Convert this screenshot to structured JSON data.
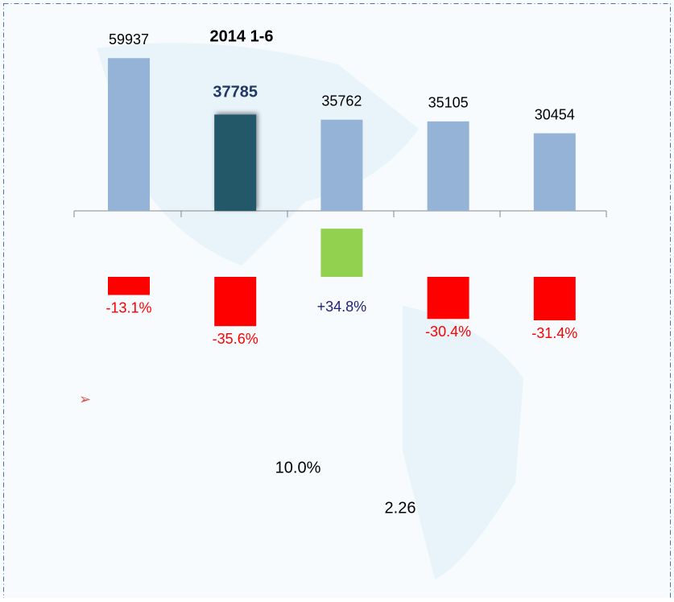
{
  "chart_data": [
    {
      "type": "bar",
      "title": "2014   1-6",
      "categories": [
        null,
        null,
        null,
        null,
        null
      ],
      "values": [
        59937,
        37785,
        35762,
        35105,
        30454
      ],
      "colors": [
        "#95b3d7",
        "#215968",
        "#95b3d7",
        "#95b3d7",
        "#95b3d7"
      ],
      "ylim": [
        0,
        60000
      ]
    },
    {
      "type": "bar",
      "categories": [
        null,
        null,
        null,
        null,
        null
      ],
      "values": [
        -13.1,
        -35.6,
        34.8,
        -30.4,
        -31.4
      ],
      "value_labels": [
        "-13.1%",
        "-35.6%",
        "+34.8%",
        "-30.4%",
        "-31.4%"
      ],
      "colors": [
        "#ff0000",
        "#ff0000",
        "#92d050",
        "#ff0000",
        "#ff0000"
      ],
      "label_colors": [
        "#ff0000",
        "#ff0000",
        "#1f1f7a",
        "#ff0000",
        "#ff0000"
      ],
      "ylim": [
        -40,
        40
      ]
    }
  ],
  "text_items": [
    "10.0%",
    "2.26"
  ]
}
